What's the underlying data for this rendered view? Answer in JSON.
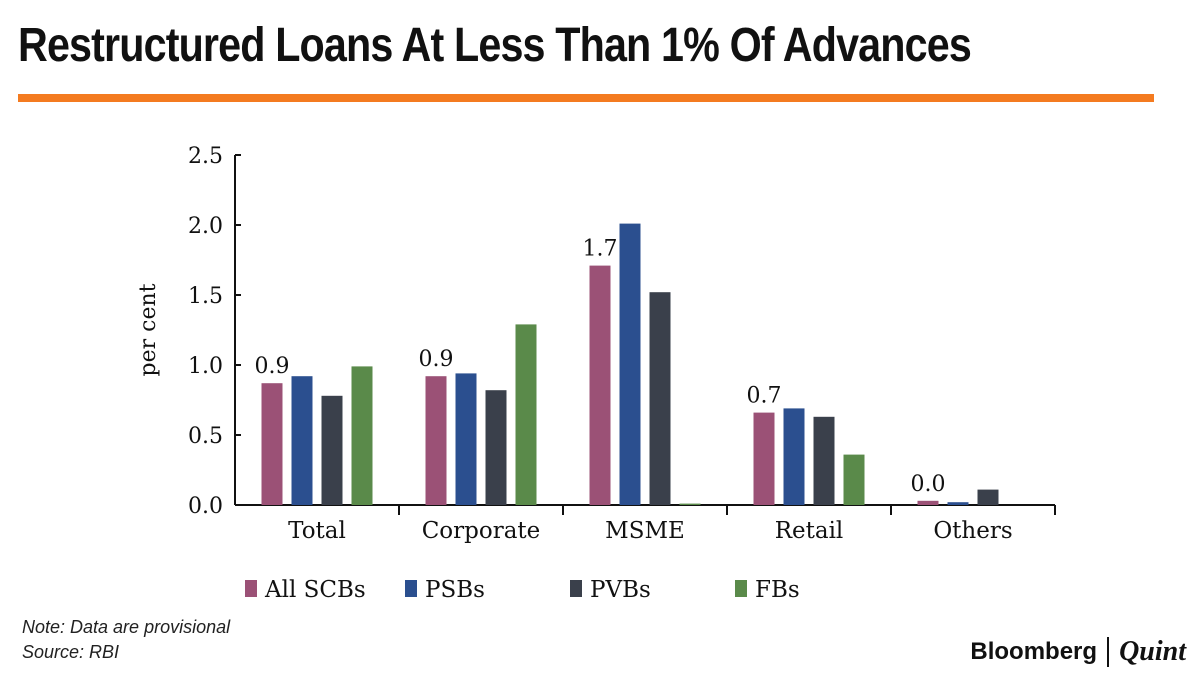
{
  "title": "Restructured Loans At Less Than 1% Of Advances",
  "note": "Note: Data are  provisional",
  "source": "Source: RBI",
  "brand": {
    "left": "Bloomberg",
    "right": "Quint"
  },
  "chart_data": {
    "type": "bar",
    "title": "",
    "xlabel": "",
    "ylabel": "per cent",
    "ylim": [
      0,
      2.5
    ],
    "yticks": [
      "0.0",
      "0.5",
      "1.0",
      "1.5",
      "2.0",
      "2.5"
    ],
    "categories": [
      "Total",
      "Corporate",
      "MSME",
      "Retail",
      "Others"
    ],
    "series": [
      {
        "name": "All SCBs",
        "color": "#9b5176",
        "values": [
          0.87,
          0.92,
          1.71,
          0.66,
          0.03
        ]
      },
      {
        "name": "PSBs",
        "color": "#2b4f8f",
        "values": [
          0.92,
          0.94,
          2.01,
          0.69,
          0.02
        ]
      },
      {
        "name": "PVBs",
        "color": "#3a404b",
        "values": [
          0.78,
          0.82,
          1.52,
          0.63,
          0.11
        ]
      },
      {
        "name": "FBs",
        "color": "#5a8a4a",
        "values": [
          0.99,
          1.29,
          0.01,
          0.36,
          0.0
        ]
      }
    ],
    "data_labels": [
      "0.9",
      "0.9",
      "1.7",
      "0.7",
      "0.0"
    ],
    "legend": "bottom",
    "grid": false
  }
}
